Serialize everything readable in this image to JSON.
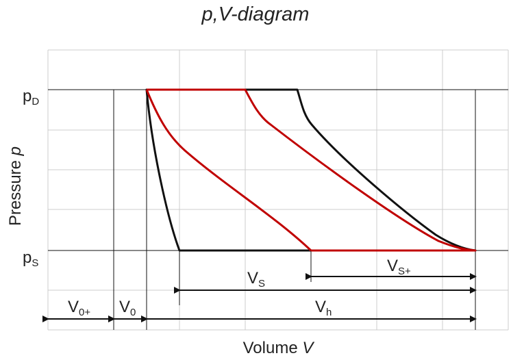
{
  "title": "p,V-diagram",
  "x_axis_label": {
    "text": "Volume ",
    "var": "V"
  },
  "y_axis_label": {
    "text": "Pressure ",
    "var": "p"
  },
  "pressure_labels": [
    {
      "base": "p",
      "sub": "D"
    },
    {
      "base": "p",
      "sub": "S"
    }
  ],
  "dimension_labels": {
    "v0_plus": {
      "base": "V",
      "sub": "0+"
    },
    "v0": {
      "base": "V",
      "sub": "0"
    },
    "vh": {
      "base": "V",
      "sub": "h"
    },
    "vs": {
      "base": "V",
      "sub": "S"
    },
    "vs_plus": {
      "base": "V",
      "sub": "S+"
    }
  },
  "colors": {
    "black_cycle": "#111111",
    "red_cycle": "#c00000",
    "grid": "#cccccc",
    "text": "#222222"
  }
}
